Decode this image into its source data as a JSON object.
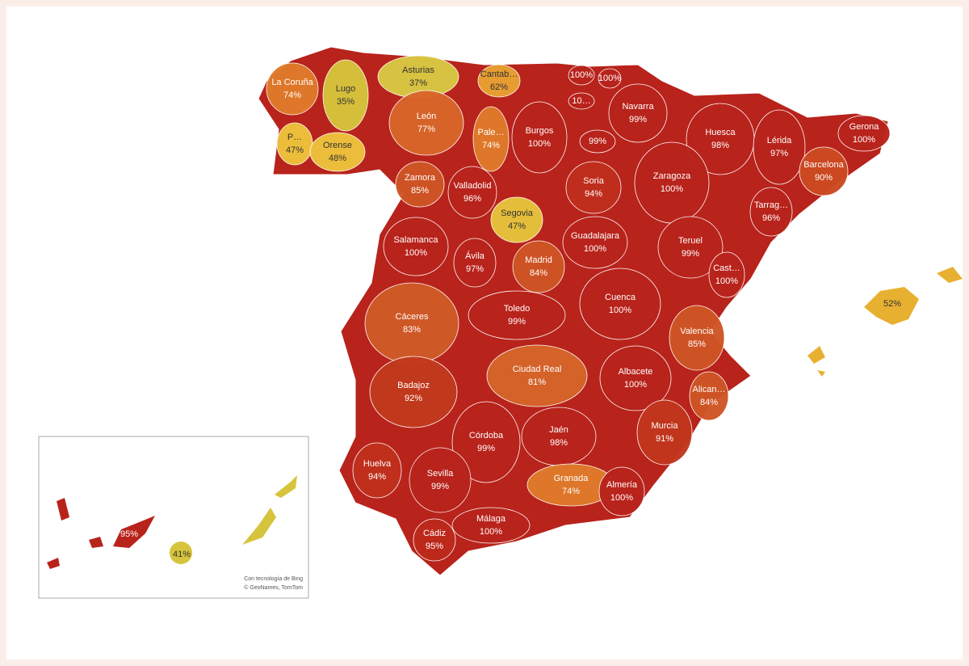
{
  "map": {
    "provinces": [
      {
        "name": "La Coruña",
        "label": "74%",
        "color": "#e07a2a"
      },
      {
        "name": "Lugo",
        "label": "35%",
        "color": "#d6c43c"
      },
      {
        "name": "Asturias",
        "label": "37%",
        "color": "#d9c843"
      },
      {
        "name": "Cantab…",
        "label": "62%",
        "color": "#e8a032"
      },
      {
        "name": "P…",
        "label": "47%",
        "color": "#eec23c"
      },
      {
        "name": "Orense",
        "label": "48%",
        "color": "#eec23c"
      },
      {
        "name": "León",
        "label": "77%",
        "color": "#d9662a"
      },
      {
        "name": "Pale…",
        "label": "74%",
        "color": "#e07a2a"
      },
      {
        "name": "Burgos",
        "label": "100%",
        "color": "#b8231b"
      },
      {
        "label": "100%",
        "color": "#b8231b"
      },
      {
        "label": "100%",
        "color": "#b8231b"
      },
      {
        "label": "10…",
        "color": "#b8231b"
      },
      {
        "name": "Navarra",
        "label": "99%",
        "color": "#b8231b"
      },
      {
        "label": "99%",
        "color": "#b8231b"
      },
      {
        "name": "Huesca",
        "label": "98%",
        "color": "#b8231b"
      },
      {
        "name": "Lérida",
        "label": "97%",
        "color": "#b8231b"
      },
      {
        "name": "Gerona",
        "label": "100%",
        "color": "#b8231b"
      },
      {
        "name": "Barcelona",
        "label": "90%",
        "color": "#cc4a22"
      },
      {
        "name": "Zamora",
        "label": "85%",
        "color": "#cf5525"
      },
      {
        "name": "Valladolid",
        "label": "96%",
        "color": "#b8231b"
      },
      {
        "name": "Soria",
        "label": "94%",
        "color": "#c02e1d"
      },
      {
        "name": "Zaragoza",
        "label": "100%",
        "color": "#b8231b"
      },
      {
        "name": "Tarrag…",
        "label": "96%",
        "color": "#b8231b"
      },
      {
        "name": "Segovia",
        "label": "47%",
        "color": "#e6c43c"
      },
      {
        "name": "Salamanca",
        "label": "100%",
        "color": "#b8231b"
      },
      {
        "name": "Ávila",
        "label": "97%",
        "color": "#b8231b"
      },
      {
        "name": "Madrid",
        "label": "84%",
        "color": "#cf5525"
      },
      {
        "name": "Guadalajara",
        "label": "100%",
        "color": "#b8231b"
      },
      {
        "name": "Teruel",
        "label": "99%",
        "color": "#b8231b"
      },
      {
        "name": "Cast…",
        "label": "100%",
        "color": "#b8231b"
      },
      {
        "name": "Cáceres",
        "label": "83%",
        "color": "#d05a28"
      },
      {
        "name": "Toledo",
        "label": "99%",
        "color": "#b8231b"
      },
      {
        "name": "Cuenca",
        "label": "100%",
        "color": "#b8231b"
      },
      {
        "name": "Valencia",
        "label": "85%",
        "color": "#cf5525"
      },
      {
        "name": "Ciudad Real",
        "label": "81%",
        "color": "#d5652a"
      },
      {
        "name": "Albacete",
        "label": "100%",
        "color": "#b8231b"
      },
      {
        "name": "Alican…",
        "label": "84%",
        "color": "#cf5525"
      },
      {
        "name": "Badajoz",
        "label": "92%",
        "color": "#c23a1e"
      },
      {
        "name": "Córdoba",
        "label": "99%",
        "color": "#b8231b"
      },
      {
        "name": "Jaén",
        "label": "98%",
        "color": "#b8231b"
      },
      {
        "name": "Murcia",
        "label": "91%",
        "color": "#c2361e"
      },
      {
        "name": "Huelva",
        "label": "94%",
        "color": "#c0301d"
      },
      {
        "name": "Sevilla",
        "label": "99%",
        "color": "#b8231b"
      },
      {
        "name": "Granada",
        "label": "74%",
        "color": "#e07a2a"
      },
      {
        "name": "Almería",
        "label": "100%",
        "color": "#b8231b"
      },
      {
        "name": "Málaga",
        "label": "100%",
        "color": "#b8231b"
      },
      {
        "name": "Cádiz",
        "label": "95%",
        "color": "#bd2a1c"
      }
    ],
    "baleares": {
      "label": "52%",
      "color": "#e8b030"
    },
    "canarias": [
      {
        "label": "95%",
        "color": "#b8231b"
      },
      {
        "label": "41%",
        "color": "#d6c43c"
      }
    ],
    "attribution": [
      "Con tecnología de Bing",
      "© GeoNames, TomTom"
    ]
  }
}
